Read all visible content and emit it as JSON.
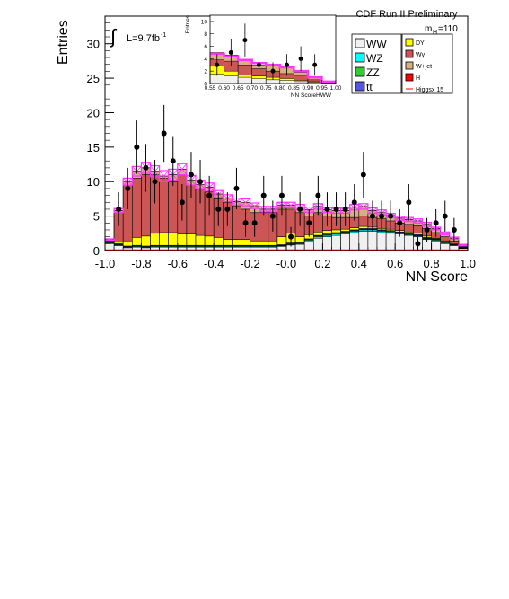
{
  "chart_data": {
    "type": "bar",
    "header": "CDF Run II Preliminary",
    "mass_label": "m",
    "mass_sub": "H",
    "mass_value": "=110",
    "lumi_prefix": "L=9.7fb",
    "lumi_exp": "-1",
    "integral_symbol": "∫",
    "xlabel": "NN Score",
    "ylabel": "Entries",
    "xlim": [
      -1.0,
      1.0
    ],
    "ylim": [
      0,
      34
    ],
    "xticks": [
      "-1.0",
      "-0.8",
      "-0.6",
      "-0.4",
      "-0.2",
      "-0.0",
      "0.2",
      "0.4",
      "0.6",
      "0.8",
      "1.0"
    ],
    "xtick_values": [
      -1.0,
      -0.8,
      -0.6,
      -0.4,
      -0.2,
      0.0,
      0.2,
      0.4,
      0.6,
      0.8,
      1.0
    ],
    "yticks": [
      "0",
      "5",
      "10",
      "15",
      "20",
      "25",
      "30"
    ],
    "ytick_values": [
      0,
      5,
      10,
      15,
      20,
      25,
      30
    ],
    "bins": [
      -1.0,
      -0.95,
      -0.9,
      -0.85,
      -0.8,
      -0.75,
      -0.7,
      -0.65,
      -0.6,
      -0.55,
      -0.5,
      -0.45,
      -0.4,
      -0.35,
      -0.3,
      -0.25,
      -0.2,
      -0.15,
      -0.1,
      -0.05,
      0.0,
      0.05,
      0.1,
      0.15,
      0.2,
      0.25,
      0.3,
      0.35,
      0.4,
      0.45,
      0.5,
      0.55,
      0.6,
      0.65,
      0.7,
      0.75,
      0.8,
      0.85,
      0.9,
      0.95,
      1.0
    ],
    "stack": [
      {
        "name": "WW",
        "color": "#f0f0f0",
        "totals": [
          1.0,
          0.7,
          0.4,
          0.5,
          0.4,
          0.5,
          0.5,
          0.5,
          0.5,
          0.5,
          0.5,
          0.5,
          0.5,
          0.5,
          0.5,
          0.5,
          0.5,
          0.5,
          0.5,
          0.6,
          0.8,
          0.9,
          1.3,
          1.8,
          2.0,
          2.2,
          2.4,
          2.6,
          2.8,
          2.8,
          2.6,
          2.5,
          2.4,
          2.2,
          2.0,
          1.6,
          1.4,
          1.0,
          0.7,
          0.3
        ]
      },
      {
        "name": "WZ",
        "color": "#00ffff",
        "totals": [
          1.1,
          0.8,
          0.5,
          0.6,
          0.5,
          0.6,
          0.6,
          0.6,
          0.6,
          0.6,
          0.6,
          0.6,
          0.6,
          0.6,
          0.6,
          0.6,
          0.6,
          0.6,
          0.6,
          0.7,
          0.9,
          1.0,
          1.5,
          2.0,
          2.2,
          2.4,
          2.6,
          2.8,
          3.0,
          3.0,
          2.8,
          2.7,
          2.5,
          2.3,
          2.1,
          1.7,
          1.5,
          1.1,
          0.8,
          0.35
        ]
      },
      {
        "name": "ZZ",
        "color": "#33cc33",
        "totals": [
          1.15,
          0.85,
          0.55,
          0.65,
          0.55,
          0.65,
          0.65,
          0.65,
          0.65,
          0.65,
          0.65,
          0.65,
          0.65,
          0.65,
          0.65,
          0.65,
          0.65,
          0.65,
          0.65,
          0.75,
          1.0,
          1.1,
          1.6,
          2.1,
          2.3,
          2.5,
          2.7,
          2.9,
          3.1,
          3.1,
          2.9,
          2.8,
          2.6,
          2.4,
          2.2,
          1.8,
          1.6,
          1.2,
          0.85,
          0.4
        ]
      },
      {
        "name": "tt",
        "color": "#5555dd",
        "totals": [
          1.3,
          1.0,
          0.65,
          0.75,
          0.65,
          0.75,
          0.75,
          0.75,
          0.75,
          0.75,
          0.75,
          0.75,
          0.75,
          0.75,
          0.75,
          0.75,
          0.75,
          0.75,
          0.75,
          0.85,
          1.1,
          1.2,
          1.7,
          2.2,
          2.4,
          2.6,
          2.8,
          3.0,
          3.2,
          3.2,
          3.0,
          2.9,
          2.7,
          2.5,
          2.3,
          1.9,
          1.7,
          1.3,
          0.9,
          0.45
        ]
      },
      {
        "name": "DY",
        "color": "#ffff00",
        "totals": [
          1.4,
          1.2,
          1.4,
          1.9,
          2.1,
          2.5,
          2.6,
          2.6,
          2.4,
          2.4,
          2.2,
          2.1,
          1.9,
          1.6,
          1.6,
          1.6,
          1.4,
          1.4,
          1.4,
          2.0,
          2.5,
          2.0,
          2.3,
          2.7,
          2.9,
          3.0,
          3.1,
          3.3,
          3.5,
          3.4,
          3.2,
          3.1,
          2.9,
          2.7,
          2.5,
          2.1,
          1.8,
          1.4,
          1.0,
          0.5
        ]
      },
      {
        "name": "Wγ",
        "color": "#cc5555",
        "totals": [
          1.5,
          5.5,
          9.5,
          10.5,
          11.0,
          11.0,
          10.5,
          10.0,
          11.0,
          9.5,
          9.0,
          8.5,
          7.5,
          7.0,
          6.5,
          6.0,
          5.5,
          5.5,
          5.5,
          6.0,
          6.0,
          5.5,
          5.0,
          5.5,
          5.0,
          4.8,
          4.8,
          4.8,
          5.0,
          4.8,
          4.6,
          4.3,
          4.0,
          3.8,
          3.6,
          3.2,
          2.6,
          2.0,
          1.4,
          0.6
        ]
      },
      {
        "name": "W+jet",
        "color": "#d8b080",
        "totals": [
          1.6,
          5.8,
          10.0,
          11.5,
          12.0,
          11.5,
          10.8,
          11.0,
          11.8,
          10.2,
          9.6,
          9.2,
          8.2,
          7.6,
          7.1,
          7.0,
          6.5,
          6.0,
          6.0,
          6.6,
          6.6,
          6.3,
          5.9,
          6.4,
          5.9,
          5.8,
          5.8,
          6.3,
          6.4,
          5.8,
          5.5,
          5.1,
          4.7,
          4.5,
          4.3,
          3.8,
          3.2,
          2.5,
          1.8,
          0.8
        ]
      },
      {
        "name": "H",
        "color": "#ff0000",
        "totals": [
          1.6,
          5.8,
          10.0,
          11.5,
          12.0,
          11.5,
          10.8,
          11.0,
          11.8,
          10.2,
          9.6,
          9.2,
          8.2,
          7.6,
          7.1,
          7.0,
          6.5,
          6.0,
          6.0,
          6.6,
          6.6,
          6.3,
          5.9,
          6.4,
          5.9,
          5.8,
          5.8,
          6.3,
          6.4,
          5.8,
          5.5,
          5.1,
          4.7,
          4.5,
          4.3,
          3.8,
          3.2,
          2.5,
          1.8,
          0.8
        ]
      }
    ],
    "uncertainty": {
      "color": "#ff33ff",
      "halfwidth": [
        0.1,
        0.3,
        0.5,
        0.7,
        0.8,
        0.8,
        0.8,
        0.8,
        0.8,
        0.7,
        0.6,
        0.6,
        0.5,
        0.5,
        0.5,
        0.5,
        0.4,
        0.4,
        0.4,
        0.4,
        0.4,
        0.4,
        0.4,
        0.4,
        0.4,
        0.4,
        0.4,
        0.4,
        0.4,
        0.4,
        0.4,
        0.3,
        0.3,
        0.3,
        0.3,
        0.3,
        0.2,
        0.2,
        0.15,
        0.1
      ]
    },
    "higgs_line": {
      "name": "Higgsx 15",
      "color": "#ff0000",
      "values": [
        0.1,
        0.1,
        0.1,
        0.1,
        0.1,
        0.1,
        0.1,
        0.1,
        0.1,
        0.1,
        0.1,
        0.1,
        0.1,
        0.1,
        0.1,
        0.1,
        0.1,
        0.1,
        0.1,
        0.1,
        0.1,
        0.1,
        0.1,
        0.1,
        0.1,
        0.1,
        0.1,
        0.1,
        0.1,
        0.1,
        0.1,
        0.1,
        0.1,
        0.1,
        0.1,
        0.1,
        0.1,
        0.1,
        0.1,
        0.1
      ]
    },
    "data_points": {
      "x": [
        -0.925,
        -0.875,
        -0.825,
        -0.775,
        -0.725,
        -0.675,
        -0.625,
        -0.575,
        -0.525,
        -0.475,
        -0.425,
        -0.375,
        -0.325,
        -0.275,
        -0.225,
        -0.175,
        -0.125,
        -0.075,
        -0.025,
        0.025,
        0.075,
        0.125,
        0.175,
        0.225,
        0.275,
        0.325,
        0.375,
        0.425,
        0.475,
        0.525,
        0.575,
        0.625,
        0.675,
        0.725,
        0.775,
        0.825,
        0.875,
        0.925
      ],
      "y": [
        6,
        9,
        15,
        12,
        10,
        17,
        13,
        7,
        11,
        10,
        8,
        6,
        6,
        9,
        4,
        4,
        8,
        5,
        8,
        2,
        6,
        4,
        8,
        6,
        6,
        6,
        7,
        11,
        5,
        5,
        5,
        4,
        7,
        1,
        3,
        4,
        5,
        3
      ]
    },
    "legend": [
      {
        "label": "WW",
        "color": "#f0f0f0",
        "size": "big"
      },
      {
        "label": "DY",
        "color": "#ffff00",
        "size": "small"
      },
      {
        "label": "WZ",
        "color": "#00ffff",
        "size": "big"
      },
      {
        "label": "Wγ",
        "color": "#cc5555",
        "size": "small"
      },
      {
        "label": "ZZ",
        "color": "#33cc33",
        "size": "big"
      },
      {
        "label": "W+jet",
        "color": "#d8b080",
        "size": "small"
      },
      {
        "label": "tt",
        "color": "#5555dd",
        "size": "big"
      },
      {
        "label": "H",
        "color": "#ff0000",
        "size": "small"
      },
      {
        "label": "Higgsx 15",
        "color": "#ff0000",
        "size": "small",
        "line": true
      }
    ],
    "legend_placement": "top-right",
    "grid": false,
    "inset": {
      "xlabel": "NN ScoreHWW",
      "ylabel": "Entries",
      "xlim": [
        0.55,
        1.0
      ],
      "ylim": [
        0,
        11
      ],
      "xticks": [
        "0.55",
        "0.60",
        "0.65",
        "0.70",
        "0.75",
        "0.80",
        "0.85",
        "0.90",
        "0.95",
        "1.00"
      ],
      "xtick_values": [
        0.55,
        0.6,
        0.65,
        0.7,
        0.75,
        0.8,
        0.85,
        0.9,
        0.95,
        1.0
      ],
      "yticks": [
        "0",
        "2",
        "4",
        "6",
        "8",
        "10"
      ],
      "ytick_values": [
        0,
        2,
        4,
        6,
        8,
        10
      ],
      "bins": [
        0.55,
        0.6,
        0.65,
        0.7,
        0.75,
        0.8,
        0.85,
        0.9,
        0.95,
        1.0
      ],
      "stack": [
        {
          "name": "WW",
          "color": "#f0f0f0",
          "totals": [
            1.5,
            1.2,
            1.0,
            0.8,
            0.6,
            0.5,
            0.3,
            0.2,
            0.1
          ]
        },
        {
          "name": "DY",
          "color": "#ffff00",
          "totals": [
            2.8,
            2.0,
            1.4,
            1.2,
            1.0,
            0.8,
            0.5,
            0.3,
            0.1
          ]
        },
        {
          "name": "Wγ",
          "color": "#cc5555",
          "totals": [
            3.8,
            3.6,
            3.0,
            2.4,
            2.0,
            1.6,
            1.2,
            0.6,
            0.2
          ]
        },
        {
          "name": "W+jet",
          "color": "#d8b080",
          "totals": [
            5.0,
            4.6,
            3.8,
            3.0,
            2.8,
            2.5,
            1.8,
            0.9,
            0.3
          ]
        }
      ],
      "uncertainty": {
        "color": "#ff33ff",
        "values": [
          4.8,
          4.4,
          3.8,
          3.3,
          3.0,
          2.6,
          2.0,
          1.0,
          0.3
        ]
      },
      "data_points": {
        "x": [
          0.575,
          0.625,
          0.675,
          0.725,
          0.775,
          0.825,
          0.875,
          0.925
        ],
        "y": [
          3,
          5,
          7,
          3,
          2,
          3,
          4,
          3
        ]
      }
    }
  }
}
